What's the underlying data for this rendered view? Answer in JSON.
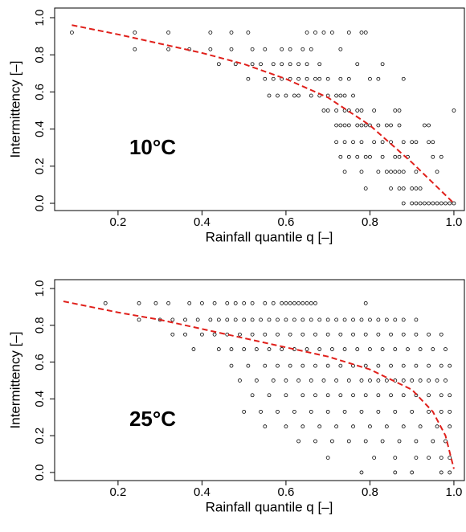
{
  "chart_data": [
    {
      "type": "scatter",
      "annotation": "10°C",
      "xlabel": "Rainfall quantile q [–]",
      "ylabel": "Intermittency [–]",
      "xlim": [
        0.049,
        1.025
      ],
      "ylim": [
        -0.039,
        1.052
      ],
      "xticks": [
        0.2,
        0.4,
        0.6,
        0.8,
        {
          "value": 1,
          "label": "1.0"
        }
      ],
      "yticks": [
        {
          "value": 0,
          "label": "0.0"
        },
        0.2,
        0.4,
        0.6,
        0.8,
        {
          "value": 1,
          "label": "1.0"
        }
      ],
      "point_color": "#000000",
      "points": [
        {
          "y": 0.92,
          "x": [
            0.09,
            0.24,
            0.32,
            0.42,
            0.47,
            0.51,
            0.65,
            0.67,
            0.69,
            0.71,
            0.75,
            0.78,
            0.79
          ]
        },
        {
          "y": 0.83,
          "x": [
            0.24,
            0.32,
            0.37,
            0.42,
            0.47,
            0.52,
            0.55,
            0.59,
            0.61,
            0.64,
            0.66,
            0.73
          ]
        },
        {
          "y": 0.75,
          "x": [
            0.44,
            0.48,
            0.52,
            0.54,
            0.57,
            0.59,
            0.61,
            0.63,
            0.65,
            0.68,
            0.77,
            0.83
          ]
        },
        {
          "y": 0.67,
          "x": [
            0.51,
            0.55,
            0.57,
            0.59,
            0.61,
            0.63,
            0.65,
            0.67,
            0.68,
            0.7,
            0.73,
            0.75,
            0.8,
            0.82,
            0.88
          ]
        },
        {
          "y": 0.58,
          "x": [
            0.56,
            0.58,
            0.6,
            0.62,
            0.63,
            0.66,
            0.68,
            0.7,
            0.72,
            0.73,
            0.74,
            0.76
          ]
        },
        {
          "y": 0.5,
          "x": [
            0.69,
            0.7,
            0.72,
            0.74,
            0.75,
            0.77,
            0.78,
            0.81,
            0.86,
            0.87,
            1.0
          ]
        },
        {
          "y": 0.42,
          "x": [
            0.72,
            0.73,
            0.74,
            0.75,
            0.77,
            0.78,
            0.79,
            0.8,
            0.82,
            0.84,
            0.85,
            0.87,
            0.93,
            0.94
          ]
        },
        {
          "y": 0.33,
          "x": [
            0.72,
            0.74,
            0.76,
            0.78,
            0.81,
            0.83,
            0.85,
            0.88,
            0.9,
            0.91,
            0.94,
            0.95
          ]
        },
        {
          "y": 0.25,
          "x": [
            0.73,
            0.75,
            0.77,
            0.79,
            0.8,
            0.83,
            0.86,
            0.87,
            0.89,
            0.95,
            0.97
          ]
        },
        {
          "y": 0.17,
          "x": [
            0.74,
            0.78,
            0.82,
            0.84,
            0.85,
            0.86,
            0.87,
            0.88,
            0.91,
            0.96
          ]
        },
        {
          "y": 0.08,
          "x": [
            0.79,
            0.85,
            0.87,
            0.88,
            0.9,
            0.91,
            0.92
          ]
        },
        {
          "y": 0,
          "x": [
            0.88,
            0.9,
            0.91,
            0.92,
            0.93,
            0.94,
            0.95,
            0.96,
            0.97,
            0.98,
            0.99,
            1.0
          ]
        }
      ],
      "fit": {
        "color": "#e0201b",
        "x": [
          0.09,
          0.2,
          0.3,
          0.4,
          0.5,
          0.6,
          0.7,
          0.8,
          0.9,
          0.95,
          1.0
        ],
        "y": [
          0.96,
          0.91,
          0.86,
          0.81,
          0.75,
          0.67,
          0.57,
          0.42,
          0.22,
          0.11,
          0.0
        ]
      }
    },
    {
      "type": "scatter",
      "annotation": "25°C",
      "xlabel": "Rainfall quantile q [–]",
      "ylabel": "Intermittency [–]",
      "xlim": [
        0.049,
        1.025
      ],
      "ylim": [
        -0.044,
        1.048
      ],
      "xticks": [
        0.2,
        0.4,
        0.6,
        0.8,
        {
          "value": 1,
          "label": "1.0"
        }
      ],
      "yticks": [
        {
          "value": 0,
          "label": "0.0"
        },
        0.2,
        0.4,
        0.6,
        0.8,
        {
          "value": 1,
          "label": "1.0"
        }
      ],
      "point_color": "#000000",
      "points": [
        {
          "y": 0.92,
          "x": [
            0.17,
            0.25,
            0.29,
            0.32,
            0.37,
            0.4,
            0.43,
            0.46,
            0.48,
            0.5,
            0.52,
            0.55,
            0.57,
            0.59,
            0.6,
            0.61,
            0.62,
            0.63,
            0.64,
            0.65,
            0.66,
            0.67,
            0.79
          ]
        },
        {
          "y": 0.83,
          "x": [
            0.25,
            0.3,
            0.33,
            0.36,
            0.39,
            0.42,
            0.44,
            0.46,
            0.48,
            0.5,
            0.52,
            0.54,
            0.56,
            0.58,
            0.6,
            0.62,
            0.64,
            0.66,
            0.68,
            0.7,
            0.72,
            0.74,
            0.76,
            0.78,
            0.8,
            0.82,
            0.84,
            0.86,
            0.88,
            0.91
          ]
        },
        {
          "y": 0.75,
          "x": [
            0.33,
            0.36,
            0.4,
            0.43,
            0.46,
            0.49,
            0.52,
            0.55,
            0.58,
            0.61,
            0.64,
            0.67,
            0.7,
            0.73,
            0.76,
            0.79,
            0.82,
            0.85,
            0.88,
            0.91,
            0.94,
            0.97
          ]
        },
        {
          "y": 0.67,
          "x": [
            0.38,
            0.44,
            0.47,
            0.5,
            0.53,
            0.56,
            0.59,
            0.62,
            0.65,
            0.68,
            0.71,
            0.74,
            0.77,
            0.8,
            0.83,
            0.86,
            0.89,
            0.92,
            0.95,
            0.98
          ]
        },
        {
          "y": 0.58,
          "x": [
            0.47,
            0.51,
            0.55,
            0.58,
            0.61,
            0.64,
            0.67,
            0.7,
            0.73,
            0.76,
            0.79,
            0.82,
            0.85,
            0.88,
            0.91,
            0.94,
            0.97,
            0.99
          ]
        },
        {
          "y": 0.5,
          "x": [
            0.49,
            0.53,
            0.57,
            0.6,
            0.63,
            0.66,
            0.69,
            0.72,
            0.75,
            0.78,
            0.8,
            0.82,
            0.84,
            0.86,
            0.88,
            0.9,
            0.92,
            0.94,
            0.96,
            0.98
          ]
        },
        {
          "y": 0.42,
          "x": [
            0.52,
            0.56,
            0.6,
            0.64,
            0.67,
            0.7,
            0.73,
            0.76,
            0.79,
            0.82,
            0.85,
            0.88,
            0.91,
            0.94,
            0.97,
            0.99
          ]
        },
        {
          "y": 0.33,
          "x": [
            0.5,
            0.54,
            0.58,
            0.62,
            0.66,
            0.7,
            0.74,
            0.78,
            0.82,
            0.86,
            0.9,
            0.94,
            0.97,
            0.99
          ]
        },
        {
          "y": 0.25,
          "x": [
            0.55,
            0.6,
            0.64,
            0.68,
            0.72,
            0.76,
            0.8,
            0.84,
            0.88,
            0.92,
            0.96,
            0.99
          ]
        },
        {
          "y": 0.17,
          "x": [
            0.63,
            0.67,
            0.71,
            0.75,
            0.79,
            0.83,
            0.87,
            0.91,
            0.95,
            0.98
          ]
        },
        {
          "y": 0.08,
          "x": [
            0.7,
            0.81,
            0.86,
            0.91,
            0.94,
            0.97,
            0.99
          ]
        },
        {
          "y": 0,
          "x": [
            0.78,
            0.86,
            0.9,
            0.97,
            0.99
          ]
        }
      ],
      "fit": {
        "color": "#e0201b",
        "x": [
          0.07,
          0.2,
          0.3,
          0.4,
          0.5,
          0.6,
          0.7,
          0.8,
          0.9,
          0.95,
          0.98,
          1.0
        ],
        "y": [
          0.93,
          0.87,
          0.83,
          0.78,
          0.73,
          0.68,
          0.63,
          0.56,
          0.45,
          0.33,
          0.2,
          0.02
        ]
      }
    }
  ]
}
